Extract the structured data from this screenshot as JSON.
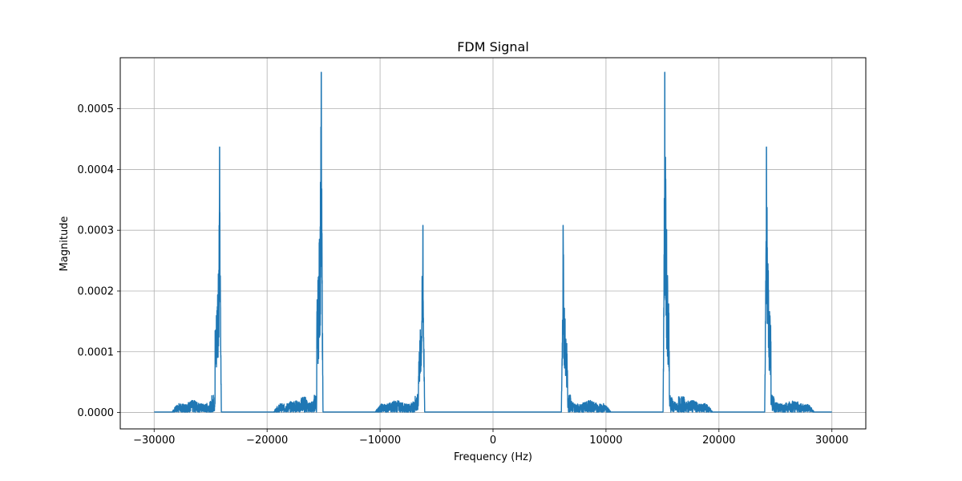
{
  "chart_data": {
    "type": "line",
    "title": "FDM Signal",
    "xlabel": "Frequency (Hz)",
    "ylabel": "Magnitude",
    "xlim": [
      -33000,
      33000
    ],
    "ylim": [
      -2.7e-05,
      0.000584
    ],
    "x_ticks": [
      -30000,
      -20000,
      -10000,
      0,
      10000,
      20000,
      30000
    ],
    "x_tick_labels": [
      "−30000",
      "−20000",
      "−10000",
      "0",
      "10000",
      "20000",
      "30000"
    ],
    "y_ticks": [
      0,
      0.0001,
      0.0002,
      0.0003,
      0.0004,
      0.0005
    ],
    "y_tick_labels": [
      "0.0000",
      "0.0001",
      "0.0002",
      "0.0003",
      "0.0004",
      "0.0005"
    ],
    "grid": true,
    "line_color": "#1f77b4",
    "freq_range": [
      -30000,
      30000
    ],
    "bands": [
      {
        "center": -24200,
        "peak": 0.000437,
        "dir": -1
      },
      {
        "center": -15200,
        "peak": 0.00056,
        "dir": -1
      },
      {
        "center": -6200,
        "peak": 0.000308,
        "dir": -1
      },
      {
        "center": 6200,
        "peak": 0.000308,
        "dir": 1
      },
      {
        "center": 15200,
        "peak": 0.00056,
        "dir": 1
      },
      {
        "center": 24200,
        "peak": 0.000437,
        "dir": 1
      }
    ]
  }
}
